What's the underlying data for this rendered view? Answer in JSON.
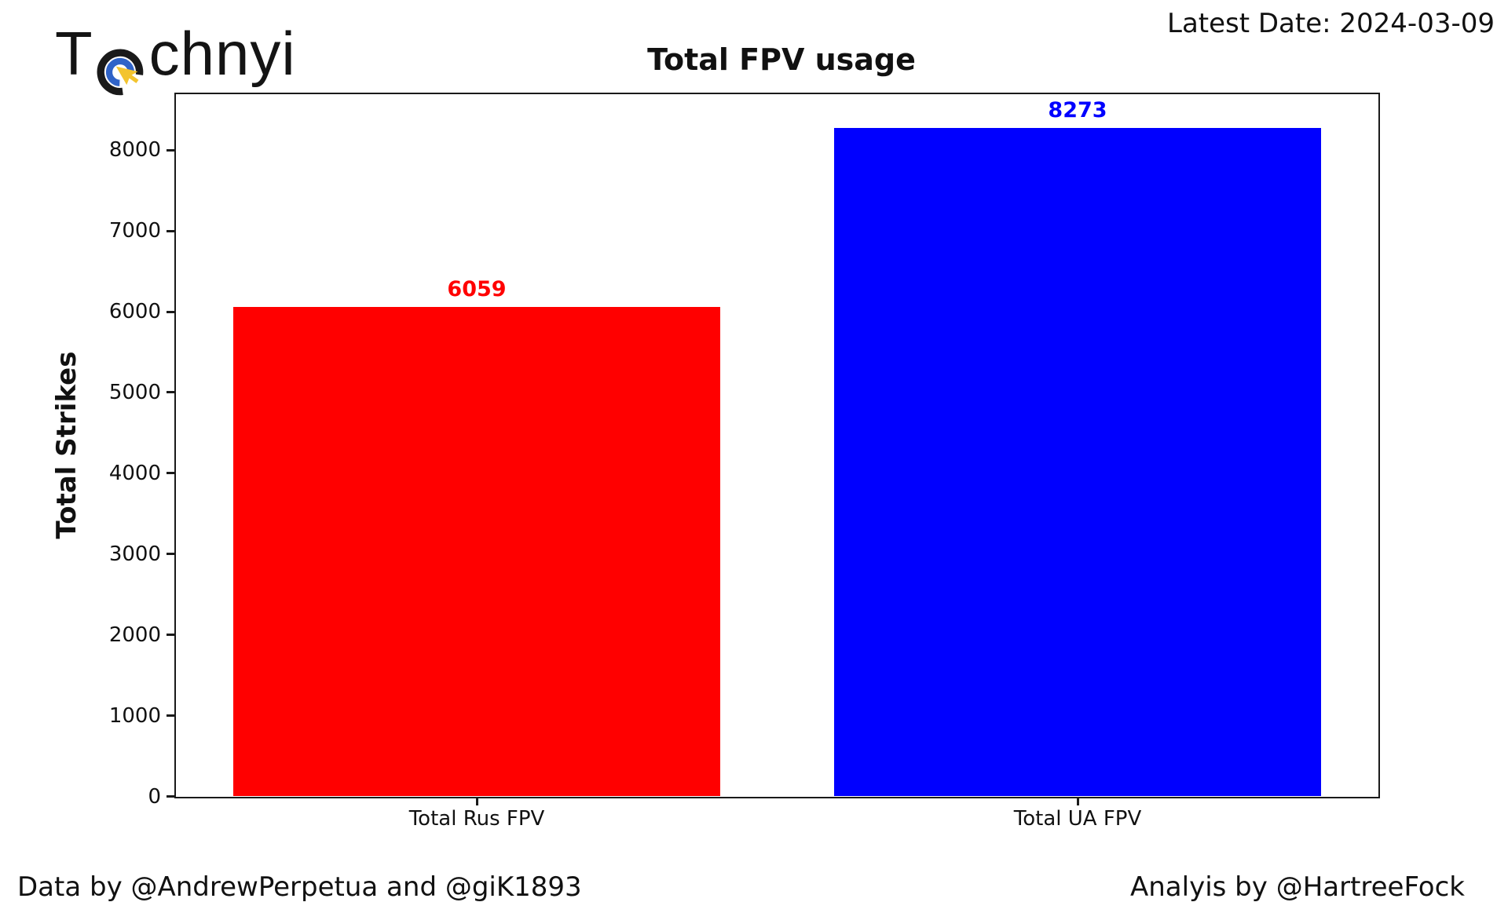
{
  "header": {
    "logo": {
      "prefix": "T",
      "suffix": "chnyi",
      "icon": "cursor-target-icon",
      "icon_colors": {
        "outer_ring": "#1a1a1a",
        "inner_ring": "#2f63c8",
        "cursor": "#f3c42f"
      }
    },
    "latest_date": "Latest Date: 2024-03-09"
  },
  "chart_data": {
    "type": "bar",
    "title": "Total FPV usage",
    "xlabel": "",
    "ylabel": "Total Strikes",
    "categories": [
      "Total Rus FPV",
      "Total UA FPV"
    ],
    "values": [
      6059,
      8273
    ],
    "value_labels": [
      "6059",
      "8273"
    ],
    "bar_colors": [
      "#ff0000",
      "#0000ff"
    ],
    "value_label_colors": [
      "#ff0000",
      "#0000ff"
    ],
    "ylim": [
      0,
      8687
    ],
    "yticks": [
      0,
      1000,
      2000,
      3000,
      4000,
      5000,
      6000,
      7000,
      8000
    ],
    "grid": false,
    "legend": null
  },
  "footer": {
    "credit_left": "Data by @AndrewPerpetua and @giK1893",
    "credit_right": "Analyis by @HartreeFock"
  }
}
